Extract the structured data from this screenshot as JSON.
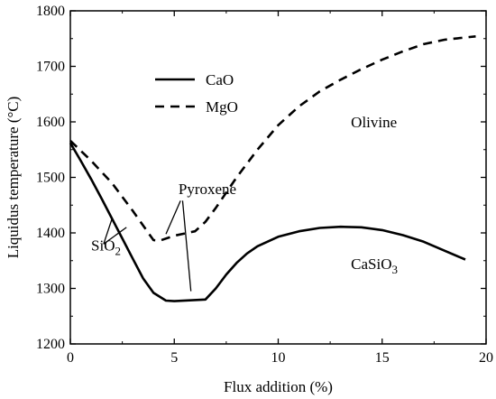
{
  "chart_data": {
    "type": "line",
    "title": "",
    "xlabel": "Flux addition (%)",
    "ylabel": "Liquidus temperature (°C)",
    "xlim": [
      0,
      20
    ],
    "ylim": [
      1200,
      1800
    ],
    "xticks": [
      0,
      5,
      10,
      15,
      20
    ],
    "yticks": [
      1200,
      1300,
      1400,
      1500,
      1600,
      1700,
      1800
    ],
    "grid": false,
    "legend_position": "upper-left",
    "series": [
      {
        "name": "CaO",
        "style": "solid",
        "color": "#000000",
        "points": [
          [
            0,
            1562
          ],
          [
            0.5,
            1530
          ],
          [
            1,
            1497
          ],
          [
            1.5,
            1462
          ],
          [
            2,
            1426
          ],
          [
            2.5,
            1390
          ],
          [
            3,
            1354
          ],
          [
            3.5,
            1318
          ],
          [
            4,
            1292
          ],
          [
            4.6,
            1278
          ],
          [
            5,
            1277
          ],
          [
            6.5,
            1280
          ],
          [
            7,
            1300
          ],
          [
            7.5,
            1325
          ],
          [
            8,
            1346
          ],
          [
            8.5,
            1363
          ],
          [
            9,
            1376
          ],
          [
            10,
            1393
          ],
          [
            11,
            1403
          ],
          [
            12,
            1409
          ],
          [
            13,
            1411
          ],
          [
            14,
            1410
          ],
          [
            15,
            1405
          ],
          [
            16,
            1396
          ],
          [
            17,
            1384
          ],
          [
            18,
            1368
          ],
          [
            19,
            1352
          ]
        ]
      },
      {
        "name": "MgO",
        "style": "dashed",
        "color": "#000000",
        "points": [
          [
            0,
            1566
          ],
          [
            1,
            1530
          ],
          [
            2,
            1490
          ],
          [
            3,
            1440
          ],
          [
            4,
            1387
          ],
          [
            4.3,
            1386
          ],
          [
            5,
            1395
          ],
          [
            6,
            1403
          ],
          [
            6.5,
            1420
          ],
          [
            7,
            1445
          ],
          [
            8,
            1500
          ],
          [
            9,
            1550
          ],
          [
            10,
            1594
          ],
          [
            11,
            1628
          ],
          [
            12,
            1655
          ],
          [
            13,
            1676
          ],
          [
            14,
            1695
          ],
          [
            15,
            1712
          ],
          [
            16,
            1727
          ],
          [
            17,
            1740
          ],
          [
            18,
            1748
          ],
          [
            19,
            1752
          ],
          [
            19.5,
            1754
          ]
        ]
      }
    ],
    "annotations": [
      {
        "text": "Pyroxene",
        "x": 5.2,
        "y": 1470
      },
      {
        "text": "SiO",
        "sub": "2",
        "x": 1,
        "y": 1368
      },
      {
        "text": "Olivine",
        "x": 13.5,
        "y": 1590
      },
      {
        "text": "CaSiO",
        "sub": "3",
        "x": 13.5,
        "y": 1335
      }
    ],
    "pointer_lines": [
      {
        "label": "Pyroxene",
        "from": [
          5.3,
          1458
        ],
        "to": [
          4.6,
          1398
        ]
      },
      {
        "label": "Pyroxene",
        "from": [
          5.4,
          1458
        ],
        "to": [
          5.8,
          1295
        ]
      },
      {
        "label": "SiO2",
        "from": [
          1.6,
          1380
        ],
        "to": [
          2.0,
          1425
        ]
      },
      {
        "label": "SiO2",
        "from": [
          1.6,
          1380
        ],
        "to": [
          2.7,
          1410
        ]
      }
    ]
  }
}
